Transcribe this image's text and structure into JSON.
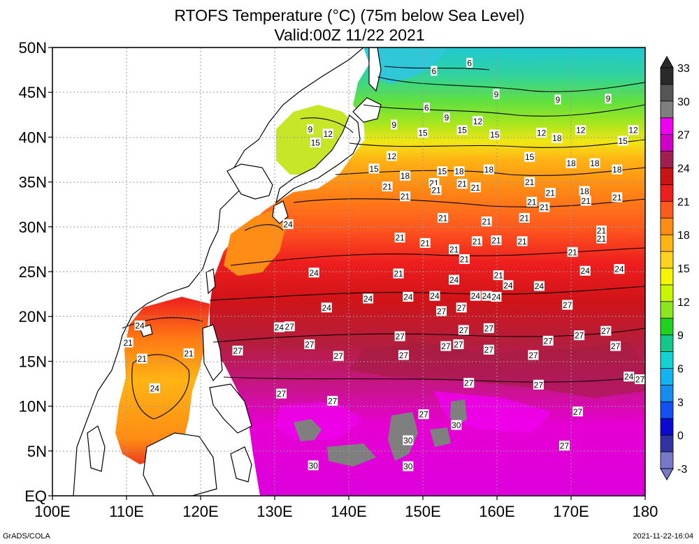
{
  "title_line1": "RTOFS Temperature (°C) (75m below Sea Level)",
  "title_line2": "Valid:00Z 11/22 2021",
  "lat_labels": [
    "50N",
    "45N",
    "40N",
    "35N",
    "30N",
    "25N",
    "20N",
    "15N",
    "10N",
    "5N",
    "EQ"
  ],
  "lon_labels": [
    "100E",
    "110E",
    "120E",
    "130E",
    "140E",
    "150E",
    "160E",
    "170E",
    "180"
  ],
  "colorbar": {
    "labels": [
      "33",
      "30",
      "27",
      "24",
      "21",
      "18",
      "15",
      "12",
      "9",
      "6",
      "3",
      "0",
      "-3"
    ],
    "colors": [
      "#2a2a2a",
      "#555555",
      "#7f7f7f",
      "#f000f0",
      "#d000c8",
      "#a01e50",
      "#c81414",
      "#ee1e1e",
      "#ff5a1e",
      "#ff8c14",
      "#ffb414",
      "#ffd21e",
      "#f5f500",
      "#c8f500",
      "#8ce61e",
      "#1ed21e",
      "#14c88c",
      "#14d2d2",
      "#14b4f0",
      "#148cf0",
      "#1450f0",
      "#0a0ad2",
      "#3232a0",
      "#7878c8"
    ]
  },
  "contour_labels": [
    {
      "v": "6",
      "lon": 151.5,
      "lat": 47.4
    },
    {
      "v": "6",
      "lon": 156.3,
      "lat": 48.3
    },
    {
      "v": "6",
      "lon": 150.5,
      "lat": 43.3
    },
    {
      "v": "9",
      "lon": 159.9,
      "lat": 44.8
    },
    {
      "v": "9",
      "lon": 168.2,
      "lat": 44.2
    },
    {
      "v": "9",
      "lon": 175.0,
      "lat": 44.3
    },
    {
      "v": "9",
      "lon": 153.2,
      "lat": 42.2
    },
    {
      "v": "9",
      "lon": 146.1,
      "lat": 41.4
    },
    {
      "v": "9",
      "lon": 134.8,
      "lat": 40.9
    },
    {
      "v": "12",
      "lon": 157.4,
      "lat": 41.8
    },
    {
      "v": "12",
      "lon": 137.2,
      "lat": 40.4
    },
    {
      "v": "12",
      "lon": 166.0,
      "lat": 40.5
    },
    {
      "v": "12",
      "lon": 171.3,
      "lat": 40.8
    },
    {
      "v": "12",
      "lon": 178.4,
      "lat": 40.8
    },
    {
      "v": "12",
      "lon": 145.8,
      "lat": 37.9
    },
    {
      "v": "15",
      "lon": 135.5,
      "lat": 39.4
    },
    {
      "v": "15",
      "lon": 150.0,
      "lat": 40.5
    },
    {
      "v": "15",
      "lon": 155.3,
      "lat": 40.8
    },
    {
      "v": "15",
      "lon": 159.7,
      "lat": 40.3
    },
    {
      "v": "15",
      "lon": 177.0,
      "lat": 39.6
    },
    {
      "v": "15",
      "lon": 164.4,
      "lat": 37.8
    },
    {
      "v": "15",
      "lon": 143.4,
      "lat": 36.5
    },
    {
      "v": "15",
      "lon": 152.6,
      "lat": 36.2
    },
    {
      "v": "18",
      "lon": 154.9,
      "lat": 36.2
    },
    {
      "v": "18",
      "lon": 158.9,
      "lat": 36.4
    },
    {
      "v": "18",
      "lon": 168.1,
      "lat": 39.9
    },
    {
      "v": "18",
      "lon": 170.0,
      "lat": 37.1
    },
    {
      "v": "18",
      "lon": 173.2,
      "lat": 37.1
    },
    {
      "v": "18",
      "lon": 176.2,
      "lat": 36.4
    },
    {
      "v": "18",
      "lon": 147.6,
      "lat": 35.7
    },
    {
      "v": "18",
      "lon": 171.8,
      "lat": 34.0
    },
    {
      "v": "21",
      "lon": 145.2,
      "lat": 34.5
    },
    {
      "v": "21",
      "lon": 147.6,
      "lat": 33.4
    },
    {
      "v": "21",
      "lon": 151.5,
      "lat": 34.9
    },
    {
      "v": "21",
      "lon": 151.8,
      "lat": 34.1
    },
    {
      "v": "21",
      "lon": 155.3,
      "lat": 34.8
    },
    {
      "v": "21",
      "lon": 157.1,
      "lat": 34.4
    },
    {
      "v": "21",
      "lon": 164.4,
      "lat": 35.0
    },
    {
      "v": "21",
      "lon": 167.2,
      "lat": 33.8
    },
    {
      "v": "21",
      "lon": 172.0,
      "lat": 32.9
    },
    {
      "v": "21",
      "lon": 176.2,
      "lat": 33.3
    },
    {
      "v": "21",
      "lon": 164.7,
      "lat": 32.8
    },
    {
      "v": "21",
      "lon": 166.4,
      "lat": 32.2
    },
    {
      "v": "21",
      "lon": 152.7,
      "lat": 31.0
    },
    {
      "v": "21",
      "lon": 158.6,
      "lat": 30.6
    },
    {
      "v": "21",
      "lon": 163.7,
      "lat": 31.0
    },
    {
      "v": "21",
      "lon": 174.1,
      "lat": 29.6
    },
    {
      "v": "21",
      "lon": 174.1,
      "lat": 28.7
    },
    {
      "v": "21",
      "lon": 146.9,
      "lat": 28.8
    },
    {
      "v": "21",
      "lon": 150.3,
      "lat": 28.2
    },
    {
      "v": "21",
      "lon": 154.2,
      "lat": 27.5
    },
    {
      "v": "21",
      "lon": 157.3,
      "lat": 28.4
    },
    {
      "v": "21",
      "lon": 159.9,
      "lat": 28.5
    },
    {
      "v": "21",
      "lon": 163.4,
      "lat": 28.4
    },
    {
      "v": "21",
      "lon": 170.2,
      "lat": 27.2
    },
    {
      "v": "21",
      "lon": 155.6,
      "lat": 26.4
    },
    {
      "v": "21",
      "lon": 146.7,
      "lat": 24.8
    },
    {
      "v": "21",
      "lon": 160.2,
      "lat": 24.6
    },
    {
      "v": "21",
      "lon": 110.2,
      "lat": 17.1
    },
    {
      "v": "21",
      "lon": 112.1,
      "lat": 15.3
    },
    {
      "v": "21",
      "lon": 118.4,
      "lat": 15.9
    },
    {
      "v": "24",
      "lon": 131.8,
      "lat": 30.3
    },
    {
      "v": "24",
      "lon": 135.3,
      "lat": 24.9
    },
    {
      "v": "24",
      "lon": 137.0,
      "lat": 21.0
    },
    {
      "v": "24",
      "lon": 142.6,
      "lat": 22.0
    },
    {
      "v": "24",
      "lon": 148.0,
      "lat": 22.2
    },
    {
      "v": "24",
      "lon": 151.6,
      "lat": 22.3
    },
    {
      "v": "24",
      "lon": 157.1,
      "lat": 22.3
    },
    {
      "v": "24",
      "lon": 158.6,
      "lat": 22.3
    },
    {
      "v": "24",
      "lon": 161.5,
      "lat": 23.5
    },
    {
      "v": "24",
      "lon": 165.7,
      "lat": 23.4
    },
    {
      "v": "24",
      "lon": 159.9,
      "lat": 22.2
    },
    {
      "v": "24",
      "lon": 154.2,
      "lat": 24.1
    },
    {
      "v": "24",
      "lon": 171.9,
      "lat": 25.1
    },
    {
      "v": "24",
      "lon": 176.5,
      "lat": 25.3
    },
    {
      "v": "24",
      "lon": 111.8,
      "lat": 19.0
    },
    {
      "v": "24",
      "lon": 130.6,
      "lat": 18.8
    },
    {
      "v": "24",
      "lon": 113.8,
      "lat": 12.0
    },
    {
      "v": "24",
      "lon": 177.8,
      "lat": 13.3
    },
    {
      "v": "27",
      "lon": 155.2,
      "lat": 21.0
    },
    {
      "v": "27",
      "lon": 152.5,
      "lat": 20.6
    },
    {
      "v": "27",
      "lon": 169.5,
      "lat": 21.3
    },
    {
      "v": "27",
      "lon": 132.0,
      "lat": 18.9
    },
    {
      "v": "27",
      "lon": 155.5,
      "lat": 18.5
    },
    {
      "v": "27",
      "lon": 158.9,
      "lat": 18.7
    },
    {
      "v": "27",
      "lon": 146.9,
      "lat": 17.8
    },
    {
      "v": "27",
      "lon": 134.7,
      "lat": 16.9
    },
    {
      "v": "27",
      "lon": 153.1,
      "lat": 16.7
    },
    {
      "v": "27",
      "lon": 154.8,
      "lat": 16.9
    },
    {
      "v": "27",
      "lon": 166.9,
      "lat": 17.3
    },
    {
      "v": "27",
      "lon": 171.1,
      "lat": 17.9
    },
    {
      "v": "27",
      "lon": 174.7,
      "lat": 18.4
    },
    {
      "v": "27",
      "lon": 176.0,
      "lat": 16.7
    },
    {
      "v": "27",
      "lon": 125.0,
      "lat": 16.2
    },
    {
      "v": "27",
      "lon": 138.6,
      "lat": 15.6
    },
    {
      "v": "27",
      "lon": 147.4,
      "lat": 15.7
    },
    {
      "v": "27",
      "lon": 158.9,
      "lat": 16.3
    },
    {
      "v": "27",
      "lon": 164.9,
      "lat": 15.7
    },
    {
      "v": "27",
      "lon": 179.3,
      "lat": 13.0
    },
    {
      "v": "27",
      "lon": 156.2,
      "lat": 12.6
    },
    {
      "v": "27",
      "lon": 165.6,
      "lat": 12.4
    },
    {
      "v": "27",
      "lon": 130.9,
      "lat": 11.4
    },
    {
      "v": "27",
      "lon": 137.8,
      "lat": 10.6
    },
    {
      "v": "27",
      "lon": 150.1,
      "lat": 9.1
    },
    {
      "v": "27",
      "lon": 170.9,
      "lat": 9.4
    },
    {
      "v": "27",
      "lon": 169.1,
      "lat": 5.6
    },
    {
      "v": "30",
      "lon": 154.5,
      "lat": 7.9
    },
    {
      "v": "30",
      "lon": 148.0,
      "lat": 6.2
    },
    {
      "v": "30",
      "lon": 135.2,
      "lat": 3.4
    },
    {
      "v": "30",
      "lon": 148.0,
      "lat": 3.3
    }
  ],
  "footer_left": "GrADS/COLA",
  "footer_right": "2021-11-22-16:04"
}
